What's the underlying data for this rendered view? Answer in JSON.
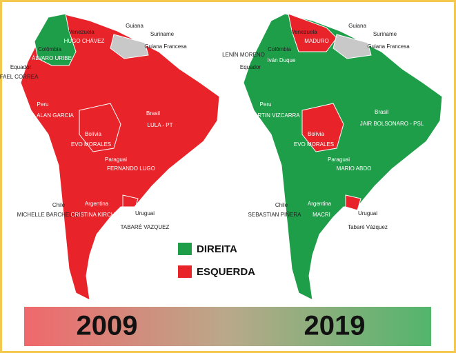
{
  "maps": [
    {
      "year": "2009",
      "labels": [
        "Venezuela",
        "HUGO CHÁVEZ",
        "Guiana",
        "Suriname",
        "Guiana Francesa",
        "Colômbia",
        "ÁLVARO URIBE",
        "Equador",
        "RAFAEL CORREA",
        "Peru",
        "ALAN GARCIA",
        "Brasil",
        "LULA - PT",
        "Bolívia",
        "EVO MORALES",
        "Paraguai",
        "FERNANDO LUGO",
        "Chile",
        "MICHELLE BARCHELLET",
        "Argentina",
        "CRISTINA KIRCHNER",
        "Uruguai",
        "TABARÉ VAZQUEZ"
      ]
    },
    {
      "year": "2019",
      "labels": [
        "Venezuela",
        "MADURO",
        "Guiana",
        "Suriname",
        "Guiana Francesa",
        "Colômbia",
        "Iván Duque",
        "Equador",
        "LENÍN MORENO",
        "Peru",
        "MARTIN VIZCARRA",
        "Brasil",
        "JAIR BOLSONARO - PSL",
        "Bolívia",
        "EVO MORALES",
        "Paraguai",
        "MARIO ABDO",
        "Chile",
        "SEBASTIAN PIÑERA",
        "Argentina",
        "MACRI",
        "Uruguai",
        "Tabaré Vázquez"
      ]
    }
  ],
  "legend": {
    "right": "DIREITA",
    "left": "ESQUERDA"
  }
}
